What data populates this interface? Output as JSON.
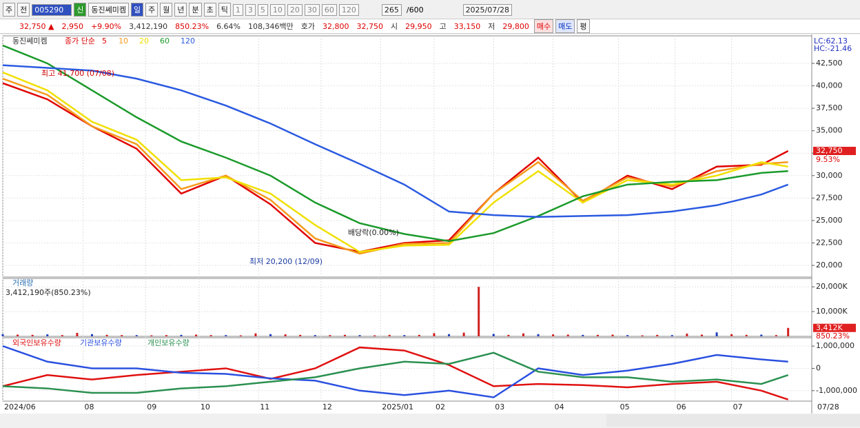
{
  "toolbar": {
    "market": "주",
    "range": "전",
    "code": "005290",
    "credit": "신",
    "name": "동진쎄미켐",
    "periods": [
      "일",
      "주",
      "월",
      "년",
      "분",
      "초",
      "틱"
    ],
    "intervals": [
      "1",
      "3",
      "5",
      "10",
      "20",
      "30",
      "60",
      "120"
    ],
    "count": "265",
    "max_count": "/600",
    "date": "2025/07/28"
  },
  "quote": {
    "price": "32,750 ▲",
    "change": "2,950",
    "change_pct": "+9.90%",
    "volume": "3,412,190",
    "volume_ratio": "850.23%",
    "turnover": "6.64%",
    "amount": "108,346백만",
    "ask_label": "호가",
    "ask": "32,800",
    "bid": "32,750",
    "open_label": "시",
    "open": "29,950",
    "high_label": "고",
    "high": "33,150",
    "low_label": "저",
    "low": "29,800",
    "buy": "매수",
    "sell": "매도",
    "avg": "평"
  },
  "chart_data": [
    {
      "type": "line",
      "panel": "price",
      "legend_name": "동진쎄미켐",
      "legend_label": "종가 단순",
      "lc": "LC:62.13",
      "hc": "HC:-21.46",
      "annotations": {
        "high": "최고 41,700 (07/08)",
        "low": "최저 20,200 (12/09)",
        "dividend": "배당락(0.00%)"
      },
      "last_price": {
        "value": 32750,
        "label": "32,750"
      },
      "last_pct": "9.53%",
      "x": [
        0,
        15,
        30,
        45,
        60,
        75,
        90,
        105,
        120,
        135,
        150,
        165,
        180,
        195,
        210,
        225,
        240,
        255,
        264
      ],
      "xlim": [
        0,
        265
      ],
      "ylim": [
        18700,
        45570
      ],
      "yticks": [
        {
          "value": 20000,
          "label": "20,000"
        },
        {
          "value": 22500,
          "label": "22,500"
        },
        {
          "value": 25000,
          "label": "25,000"
        },
        {
          "value": 27500,
          "label": "27,500"
        },
        {
          "value": 30000,
          "label": "30,000"
        },
        {
          "value": 32500,
          "label": "32,500"
        },
        {
          "value": 35000,
          "label": "35,000"
        },
        {
          "value": 37500,
          "label": "37,500"
        },
        {
          "value": 40000,
          "label": "40,000"
        },
        {
          "value": 42500,
          "label": "42,500"
        }
      ],
      "series": [
        {
          "name": "5",
          "color": "#e00000",
          "values": [
            40300,
            38500,
            35500,
            33000,
            28000,
            30000,
            26800,
            22500,
            21500,
            22500,
            22800,
            28000,
            32000,
            27000,
            30000,
            28500,
            31000,
            31200,
            32750
          ]
        },
        {
          "name": "10",
          "color": "#f59a1c",
          "values": [
            40800,
            39000,
            35500,
            33500,
            28500,
            30000,
            27300,
            23000,
            21300,
            22400,
            22500,
            28000,
            31500,
            27200,
            29800,
            28800,
            30500,
            31300,
            31500
          ]
        },
        {
          "name": "20",
          "color": "#f0e000",
          "values": [
            41500,
            39500,
            36000,
            34000,
            29500,
            29800,
            28000,
            24500,
            21500,
            22200,
            22300,
            27000,
            30500,
            27000,
            29500,
            29000,
            30000,
            31500,
            31000
          ]
        },
        {
          "name": "60",
          "color": "#1a9a2a",
          "values": [
            44500,
            42500,
            39500,
            36500,
            33800,
            32000,
            30000,
            27000,
            24700,
            23500,
            22700,
            23600,
            25500,
            27700,
            29000,
            29300,
            29500,
            30300,
            30500
          ]
        },
        {
          "name": "120",
          "color": "#2a5ae0",
          "values": [
            42300,
            42000,
            41700,
            40800,
            39500,
            37800,
            35800,
            33500,
            31300,
            29000,
            26000,
            25600,
            25400,
            25500,
            25600,
            26000,
            26700,
            27900,
            29000
          ]
        }
      ]
    },
    {
      "type": "bar",
      "panel": "volume",
      "title": "거래량",
      "info": "3,412,190주(850.23%)",
      "last_label": "3,412K",
      "last_pct": "850.23%",
      "color": "#d02020",
      "x": [
        0,
        5,
        10,
        15,
        20,
        25,
        30,
        35,
        40,
        45,
        50,
        55,
        60,
        65,
        70,
        75,
        80,
        85,
        90,
        95,
        100,
        105,
        110,
        115,
        120,
        125,
        130,
        135,
        140,
        145,
        150,
        155,
        160,
        165,
        170,
        175,
        180,
        185,
        190,
        195,
        200,
        205,
        210,
        215,
        220,
        225,
        230,
        235,
        240,
        245,
        250,
        255,
        260,
        264
      ],
      "values": [
        900,
        700,
        600,
        800,
        500,
        1400,
        900,
        600,
        500,
        500,
        400,
        500,
        600,
        700,
        500,
        500,
        400,
        1200,
        900,
        800,
        600,
        500,
        500,
        600,
        500,
        400,
        600,
        500,
        600,
        1300,
        900,
        1500,
        20000,
        1000,
        600,
        1200,
        900,
        800,
        700,
        600,
        600,
        700,
        500,
        400,
        600,
        500,
        1100,
        700,
        1600,
        900,
        600,
        700,
        500,
        3412
      ],
      "xlim": [
        0,
        265
      ],
      "ylim": [
        0,
        23400
      ],
      "yticks": [
        {
          "value": 10000,
          "label": "10,000K"
        },
        {
          "value": 20000,
          "label": "20,000K"
        }
      ]
    },
    {
      "type": "line",
      "panel": "holdings",
      "x": [
        0,
        15,
        30,
        45,
        60,
        75,
        90,
        105,
        120,
        135,
        150,
        165,
        180,
        195,
        210,
        225,
        240,
        255,
        264
      ],
      "xlim": [
        0,
        265
      ],
      "ylim": [
        -1470000,
        1375000
      ],
      "yticks": [
        {
          "value": -1000000,
          "label": "-1,000,000"
        },
        0,
        {
          "value": 1000000,
          "label": "1,000,000"
        }
      ],
      "series": [
        {
          "name": "외국인보유수량",
          "color": "#e01010",
          "values": [
            -800000,
            -300000,
            -500000,
            -300000,
            -150000,
            0,
            -470000,
            0,
            940000,
            800000,
            150000,
            -800000,
            -700000,
            -750000,
            -850000,
            -700000,
            -600000,
            -1000000,
            -1400000
          ]
        },
        {
          "name": "기관보유수량",
          "color": "#2a50e0",
          "values": [
            1000000,
            300000,
            0,
            0,
            -200000,
            -250000,
            -450000,
            -550000,
            -1000000,
            -1200000,
            -1000000,
            -1300000,
            0,
            -300000,
            -100000,
            200000,
            600000,
            400000,
            300000
          ]
        },
        {
          "name": "개인보유수량",
          "color": "#2a9050",
          "values": [
            -800000,
            -900000,
            -1100000,
            -1100000,
            -900000,
            -800000,
            -600000,
            -400000,
            0,
            300000,
            200000,
            700000,
            -150000,
            -400000,
            -400000,
            -600000,
            -500000,
            -700000,
            -300000
          ]
        }
      ]
    }
  ],
  "x_axis": {
    "ticks": [
      {
        "value": 0,
        "label": "2024/06"
      },
      {
        "value": 27,
        "label": "08"
      },
      {
        "value": 48,
        "label": "09"
      },
      {
        "value": 66,
        "label": "10"
      },
      {
        "value": 86,
        "label": "11"
      },
      {
        "value": 107,
        "label": "12"
      },
      {
        "value": 127,
        "label": "2025/01"
      },
      {
        "value": 145,
        "label": "02"
      },
      {
        "value": 165,
        "label": "03"
      },
      {
        "value": 185,
        "label": "04"
      },
      {
        "value": 207,
        "label": "05"
      },
      {
        "value": 226,
        "label": "06"
      },
      {
        "value": 245,
        "label": "07"
      }
    ],
    "end_label": "07/28"
  }
}
